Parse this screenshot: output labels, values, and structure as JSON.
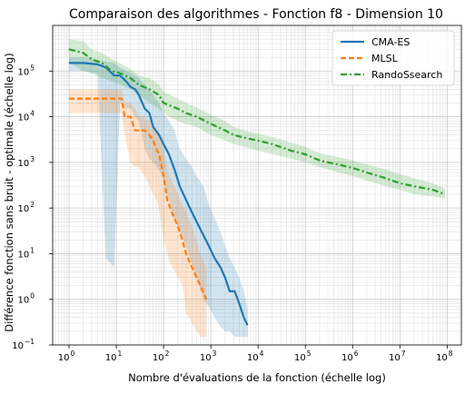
{
  "chart_data": {
    "type": "line",
    "title": "Comparaison des algorithmes - Fonction f8 - Dimension 10",
    "xlabel": "Nombre d'évaluations de la fonction (échelle log)",
    "ylabel": "Différence fonction sans bruit - optimale (échelle log)",
    "xscale": "log",
    "yscale": "log",
    "xlim": [
      0.45,
      200000000
    ],
    "ylim": [
      0.1,
      1000000
    ],
    "xticks": [
      1,
      10,
      100,
      1000,
      10000,
      100000,
      1000000,
      10000000,
      100000000
    ],
    "xtick_labels": [
      {
        "base": "10",
        "exp": "0"
      },
      {
        "base": "10",
        "exp": "1"
      },
      {
        "base": "10",
        "exp": "2"
      },
      {
        "base": "10",
        "exp": "3"
      },
      {
        "base": "10",
        "exp": "4"
      },
      {
        "base": "10",
        "exp": "5"
      },
      {
        "base": "10",
        "exp": "6"
      },
      {
        "base": "10",
        "exp": "7"
      },
      {
        "base": "10",
        "exp": "8"
      }
    ],
    "yticks": [
      0.1,
      1,
      10,
      100,
      1000,
      10000,
      100000
    ],
    "ytick_labels": [
      {
        "base": "10",
        "exp": "−1"
      },
      {
        "base": "10",
        "exp": "0"
      },
      {
        "base": "10",
        "exp": "1"
      },
      {
        "base": "10",
        "exp": "2"
      },
      {
        "base": "10",
        "exp": "3"
      },
      {
        "base": "10",
        "exp": "4"
      },
      {
        "base": "10",
        "exp": "5"
      }
    ],
    "grid": true,
    "legend_position": "top-right",
    "series": [
      {
        "name": "CMA-ES",
        "color": "#1f77b4",
        "style": "solid",
        "x": [
          1,
          2,
          4,
          6,
          9,
          12,
          16,
          20,
          25,
          30,
          40,
          50,
          60,
          80,
          100,
          130,
          170,
          220,
          300,
          400,
          500,
          700,
          900,
          1200,
          1600,
          2000,
          2500,
          3200,
          4000,
          5000,
          6000
        ],
        "y": [
          150000,
          150000,
          140000,
          120000,
          80000,
          80000,
          60000,
          45000,
          40000,
          30000,
          15000,
          12000,
          6000,
          4000,
          2500,
          1500,
          700,
          300,
          150,
          80,
          50,
          25,
          15,
          8,
          5,
          3,
          1.5,
          1.5,
          0.8,
          0.4,
          0.27
        ],
        "lower": [
          100000,
          100000,
          90000,
          8,
          5,
          20000,
          15000,
          15000,
          10000,
          8000,
          2000,
          1200,
          1000,
          700,
          400,
          150,
          60,
          30,
          15,
          6,
          3,
          1,
          0.7,
          0.4,
          0.25,
          0.2,
          0.2,
          0.15,
          0.15,
          0.15,
          0.15
        ],
        "upper": [
          200000,
          200000,
          180000,
          160000,
          150000,
          120000,
          100000,
          90000,
          80000,
          70000,
          50000,
          40000,
          30000,
          20000,
          12000,
          8000,
          5000,
          2000,
          1200,
          800,
          500,
          300,
          120,
          60,
          30,
          15,
          8,
          5,
          3,
          1.5,
          0.6
        ]
      },
      {
        "name": "MLSL",
        "color": "#ff7f0e",
        "style": "dashed",
        "x": [
          1,
          2,
          4,
          6,
          10,
          13,
          15,
          20,
          25,
          30,
          35,
          40,
          50,
          60,
          70,
          80,
          100,
          120,
          150,
          200,
          250,
          300,
          400,
          500,
          600,
          800
        ],
        "y": [
          25000,
          25000,
          25000,
          25000,
          25000,
          25000,
          10000,
          10000,
          5000,
          5000,
          5000,
          5000,
          4000,
          3000,
          2000,
          1500,
          500,
          150,
          80,
          40,
          20,
          10,
          5,
          3,
          2,
          1
        ],
        "lower": [
          12000,
          12000,
          12000,
          12000,
          12000,
          12000,
          4000,
          1000,
          800,
          800,
          600,
          500,
          300,
          200,
          150,
          100,
          20,
          10,
          5,
          3,
          2,
          0.5,
          0.3,
          0.2,
          0.15,
          0.15
        ],
        "upper": [
          40000,
          40000,
          40000,
          40000,
          40000,
          40000,
          20000,
          20000,
          15000,
          10000,
          10000,
          9000,
          8000,
          7000,
          5000,
          5000,
          2000,
          700,
          400,
          200,
          120,
          80,
          40,
          20,
          10,
          5
        ]
      },
      {
        "name": "RandoSsearch",
        "color": "#2ca02c",
        "style": "dashdot",
        "x": [
          1,
          2,
          3,
          5,
          8,
          12,
          20,
          30,
          50,
          80,
          100,
          200,
          300,
          500,
          1000,
          2000,
          3000,
          5000,
          10000,
          20000,
          50000,
          100000,
          200000,
          500000,
          1000000,
          2000000,
          5000000,
          10000000,
          20000000,
          50000000,
          90000000
        ],
        "y": [
          300000,
          250000,
          180000,
          150000,
          100000,
          90000,
          70000,
          50000,
          40000,
          30000,
          20000,
          15000,
          12000,
          10000,
          7000,
          5000,
          4000,
          3500,
          3000,
          2500,
          1800,
          1500,
          1100,
          900,
          750,
          600,
          450,
          350,
          300,
          250,
          200
        ],
        "lower": [
          150000,
          100000,
          90000,
          70000,
          60000,
          50000,
          40000,
          30000,
          20000,
          15000,
          12000,
          8000,
          7000,
          6000,
          4000,
          3000,
          2500,
          2200,
          1800,
          1500,
          1200,
          1000,
          800,
          600,
          500,
          400,
          300,
          250,
          200,
          180,
          160
        ],
        "upper": [
          500000,
          450000,
          300000,
          250000,
          180000,
          150000,
          110000,
          80000,
          70000,
          50000,
          35000,
          25000,
          20000,
          16000,
          11000,
          8000,
          6000,
          5000,
          4200,
          3600,
          2700,
          2200,
          1600,
          1300,
          1100,
          900,
          700,
          550,
          450,
          350,
          260
        ]
      }
    ]
  }
}
